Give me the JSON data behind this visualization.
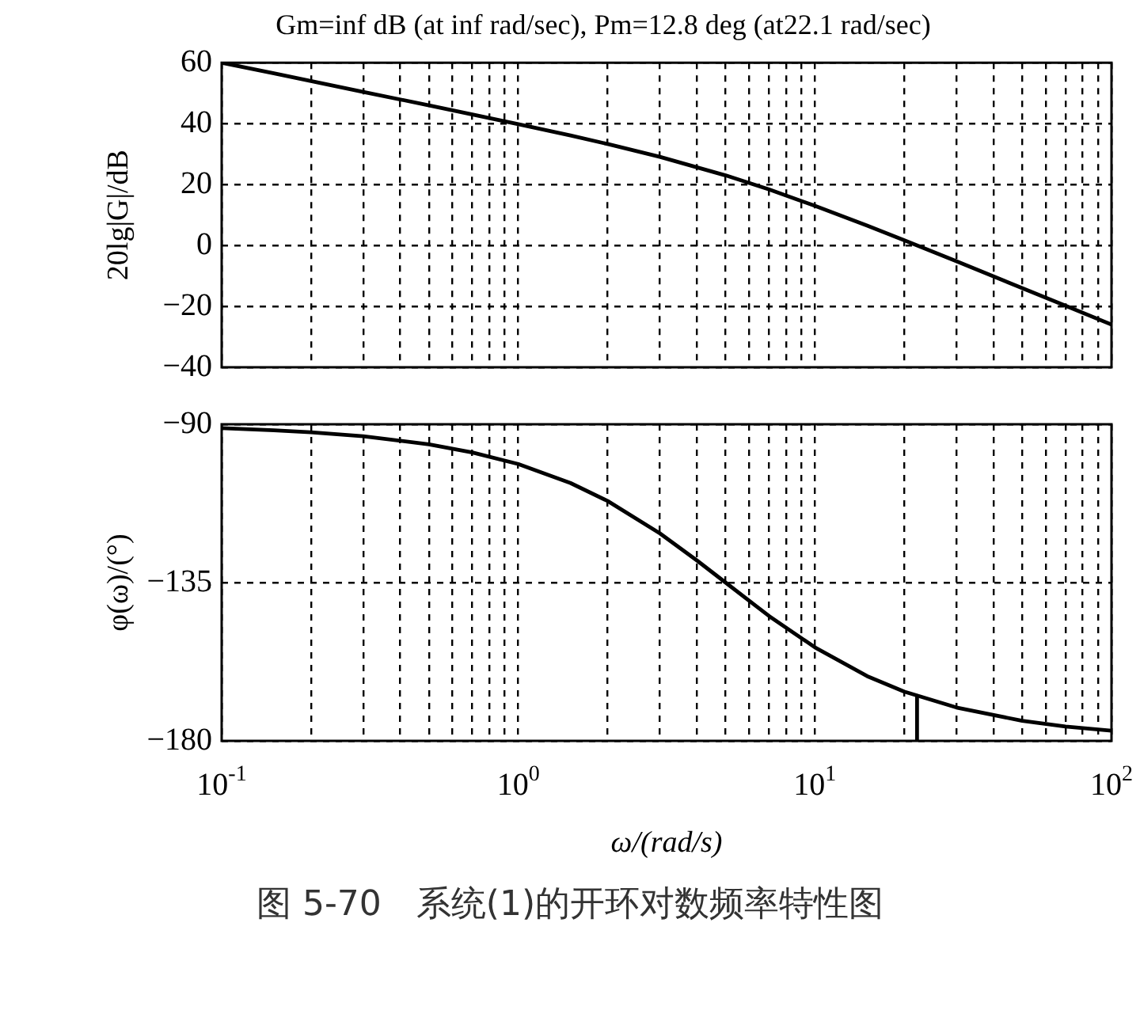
{
  "chart_data": [
    {
      "type": "line",
      "title": "Gm=inf dB (at inf rad/sec), Pm=12.8 deg (at22.1 rad/sec)",
      "ylabel": "20lg|G|/dB",
      "log": "x",
      "grid": true,
      "tick_labels": "y",
      "xlim": [
        0.1,
        100
      ],
      "xticks": [
        {
          "value": 0.1,
          "label": null
        },
        {
          "value": 0.2,
          "label": null
        },
        {
          "value": 0.3,
          "label": null
        },
        {
          "value": 0.4,
          "label": null
        },
        {
          "value": 0.5,
          "label": null
        },
        {
          "value": 0.6,
          "label": null
        },
        {
          "value": 0.7,
          "label": null
        },
        {
          "value": 0.8,
          "label": null
        },
        {
          "value": 0.9,
          "label": null
        },
        {
          "value": 1,
          "label": null
        },
        {
          "value": 2,
          "label": null
        },
        {
          "value": 3,
          "label": null
        },
        {
          "value": 4,
          "label": null
        },
        {
          "value": 5,
          "label": null
        },
        {
          "value": 6,
          "label": null
        },
        {
          "value": 7,
          "label": null
        },
        {
          "value": 8,
          "label": null
        },
        {
          "value": 9,
          "label": null
        },
        {
          "value": 10,
          "label": null
        },
        {
          "value": 20,
          "label": null
        },
        {
          "value": 30,
          "label": null
        },
        {
          "value": 40,
          "label": null
        },
        {
          "value": 50,
          "label": null
        },
        {
          "value": 60,
          "label": null
        },
        {
          "value": 70,
          "label": null
        },
        {
          "value": 80,
          "label": null
        },
        {
          "value": 90,
          "label": null
        },
        {
          "value": 100,
          "label": null
        }
      ],
      "ylim": [
        -40,
        60
      ],
      "yticks": [
        -40,
        -20,
        0,
        20,
        40,
        60
      ],
      "x": [
        0.1,
        0.15,
        0.2,
        0.3,
        0.5,
        0.7,
        1,
        1.5,
        2,
        3,
        5,
        7,
        10,
        15,
        20,
        30,
        50,
        70,
        100
      ],
      "series": [
        {
          "color": "#000000",
          "values": [
            60.0,
            56.5,
            54.0,
            50.4,
            46.0,
            43.0,
            39.8,
            36.1,
            33.3,
            29.1,
            23.0,
            18.4,
            13.0,
            6.5,
            1.7,
            -5.2,
            -14.0,
            -19.8,
            -26.0
          ]
        }
      ]
    },
    {
      "type": "line",
      "ylabel": "φ(ω)/(°)",
      "xlabel": "ω/(rad/s)",
      "log": "x",
      "grid": true,
      "xlim": [
        0.1,
        100
      ],
      "xticks": [
        {
          "value": 0.1,
          "label": "10$^{-1}$"
        },
        {
          "value": 0.2,
          "label": null
        },
        {
          "value": 0.3,
          "label": null
        },
        {
          "value": 0.4,
          "label": null
        },
        {
          "value": 0.5,
          "label": null
        },
        {
          "value": 0.6,
          "label": null
        },
        {
          "value": 0.7,
          "label": null
        },
        {
          "value": 0.8,
          "label": null
        },
        {
          "value": 0.9,
          "label": null
        },
        {
          "value": 1,
          "label": "10$^{0}$"
        },
        {
          "value": 2,
          "label": null
        },
        {
          "value": 3,
          "label": null
        },
        {
          "value": 4,
          "label": null
        },
        {
          "value": 5,
          "label": null
        },
        {
          "value": 6,
          "label": null
        },
        {
          "value": 7,
          "label": null
        },
        {
          "value": 8,
          "label": null
        },
        {
          "value": 9,
          "label": null
        },
        {
          "value": 10,
          "label": "10$^{1}$"
        },
        {
          "value": 20,
          "label": null
        },
        {
          "value": 30,
          "label": null
        },
        {
          "value": 40,
          "label": null
        },
        {
          "value": 50,
          "label": null
        },
        {
          "value": 60,
          "label": null
        },
        {
          "value": 70,
          "label": null
        },
        {
          "value": 80,
          "label": null
        },
        {
          "value": 90,
          "label": null
        },
        {
          "value": 100,
          "label": "10$^{2}$"
        }
      ],
      "ylim": [
        -180,
        -90
      ],
      "yticks": [
        -180,
        -135,
        -90
      ],
      "x": [
        0.1,
        0.15,
        0.2,
        0.3,
        0.5,
        0.7,
        1,
        1.5,
        2,
        3,
        4,
        5,
        7,
        10,
        15,
        20,
        30,
        50,
        70,
        100
      ],
      "series": [
        {
          "color": "#000000",
          "values": [
            -91.1,
            -91.7,
            -92.3,
            -93.4,
            -95.7,
            -98.0,
            -101.3,
            -106.7,
            -111.8,
            -121.0,
            -128.7,
            -135.0,
            -144.5,
            -153.4,
            -161.6,
            -166.0,
            -170.5,
            -174.3,
            -175.9,
            -177.1
          ]
        },
        {
          "color": "#000000",
          "x": [
            22.1,
            22.1
          ],
          "values": [
            -180,
            -167.2
          ]
        }
      ],
      "annotations": [
        "图 5-70　系统(1)的开环对数频率特性图"
      ]
    }
  ]
}
